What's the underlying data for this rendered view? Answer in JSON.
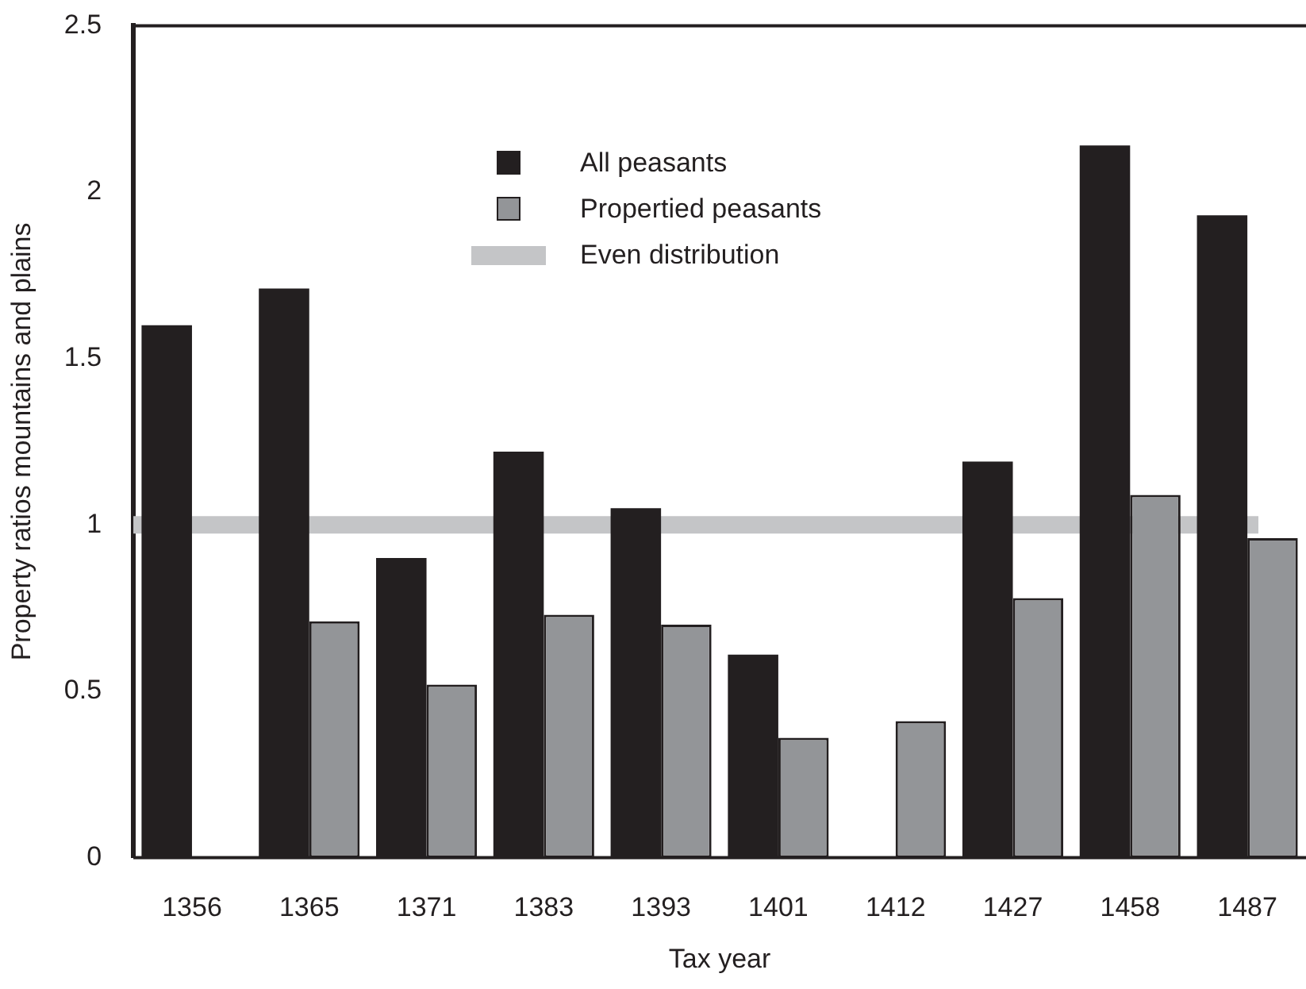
{
  "chart_data": {
    "type": "bar",
    "xlabel": "Tax year",
    "ylabel": "Property ratios mountains and plains",
    "categories": [
      "1356",
      "1365",
      "1371",
      "1383",
      "1393",
      "1401",
      "1412",
      "1427",
      "1458",
      "1487"
    ],
    "series": [
      {
        "name": "All peasants",
        "color": "#231f20",
        "values": [
          1.6,
          1.71,
          0.9,
          1.22,
          1.05,
          0.61,
          0,
          1.19,
          2.14,
          1.93
        ]
      },
      {
        "name": "Propertied peasants",
        "color": "#939598",
        "values": [
          0,
          0.71,
          0.52,
          0.73,
          0.7,
          0.36,
          0.41,
          0.78,
          1.09,
          0.96
        ]
      }
    ],
    "ref_lines": [
      {
        "axis": "y",
        "value": 1,
        "label": "Even distribution",
        "color": "#c4c5c7"
      }
    ],
    "ylim": [
      0,
      2.5
    ],
    "yticks": [
      0,
      0.5,
      1,
      1.5,
      2,
      2.5
    ],
    "grid": false,
    "legend": "top"
  }
}
